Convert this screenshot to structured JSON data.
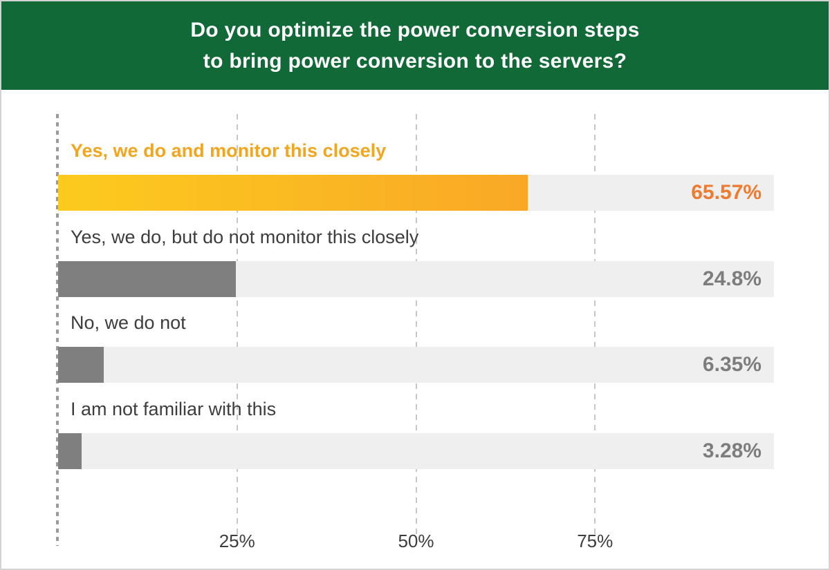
{
  "header": {
    "title_line1": "Do you optimize the power conversion steps",
    "title_line2": "to bring power conversion to the servers?"
  },
  "chart_data": {
    "type": "bar",
    "orientation": "horizontal",
    "title": "Do you optimize the power conversion steps to bring power conversion to the servers?",
    "categories": [
      "Yes, we do and monitor this closely",
      "Yes, we do, but do not monitor this closely",
      "No, we do not",
      "I am not familiar with this"
    ],
    "values": [
      65.57,
      24.8,
      6.35,
      3.28
    ],
    "value_labels": [
      "65.57%",
      "24.8%",
      "6.35%",
      "3.28%"
    ],
    "highlight_index": 0,
    "xlim": [
      0,
      100
    ],
    "x_ticks": [
      {
        "label": "25%",
        "value": 25
      },
      {
        "label": "50%",
        "value": 50
      },
      {
        "label": "75%",
        "value": 75
      }
    ],
    "grid": "dashed-vertical",
    "legend": "none",
    "colors": {
      "header_bg": "#116937",
      "header_text": "#ffffff",
      "bar_highlight_gradient_start": "#fccb1e",
      "bar_highlight_gradient_end": "#f9a826",
      "bar_default": "#7f7f7f",
      "track": "#efefef",
      "highlight_label_text": "#f2a51d",
      "highlight_value_text": "#ed7b30",
      "label_text": "#3d3d3d",
      "value_text": "#7d7d7d"
    }
  }
}
